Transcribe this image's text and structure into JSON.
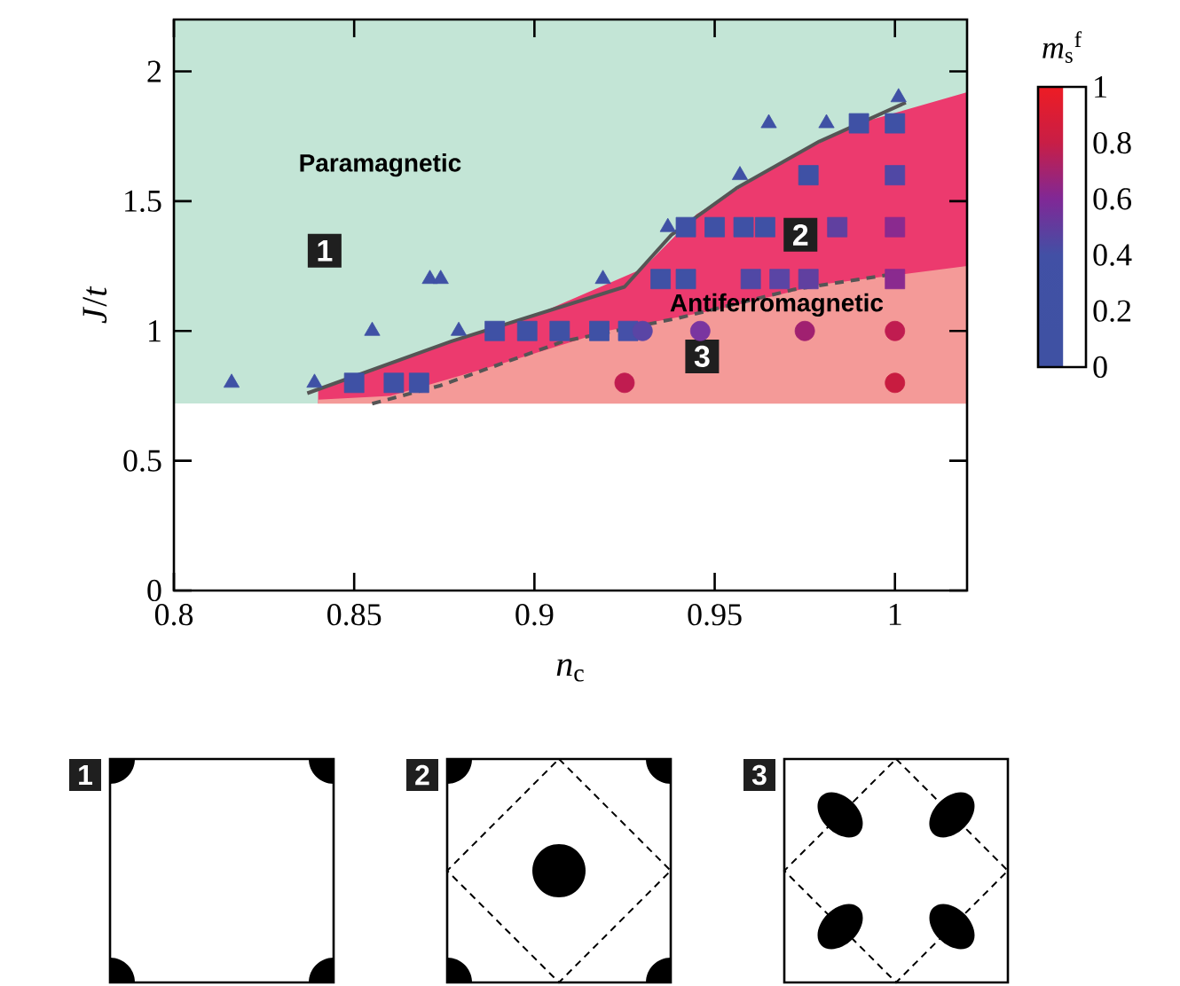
{
  "chart_data": {
    "type": "scatter",
    "xlabel": "*n*$_{c}$",
    "ylabel": "*J*/*t*",
    "clabel": "*m*$_{s}$$^{f}$",
    "xlim": [
      0.8,
      1.02
    ],
    "ylim": [
      0,
      2.2
    ],
    "xticks": [
      0.8,
      0.85,
      0.9,
      0.95,
      1
    ],
    "yticks": [
      0,
      0.5,
      1,
      1.5,
      2
    ],
    "clim": [
      0,
      1
    ],
    "cticks": [
      0,
      0.2,
      0.4,
      0.6,
      0.8,
      1
    ],
    "bands": [
      {
        "axis": "y",
        "from": 0.72,
        "to": 2.2,
        "color": "#c3e5d6"
      },
      {
        "axis": "y",
        "from": 0,
        "to": 0.72,
        "color": "#ffffff"
      }
    ],
    "series": [
      {
        "type": "area",
        "color": "#ec3a6e",
        "x": [
          0.84,
          0.86,
          0.9,
          0.93,
          0.945,
          0.97,
          0.99,
          1.02
        ],
        "values": [
          0.77,
          0.88,
          1.06,
          1.24,
          1.45,
          1.66,
          1.8,
          1.92
        ]
      },
      {
        "type": "area",
        "color": "#f49a98",
        "x": [
          0.84,
          0.86,
          0.89,
          0.92,
          0.95,
          0.98,
          1.02
        ],
        "values": [
          0.735,
          0.75,
          0.87,
          1.0,
          1.08,
          1.18,
          1.25
        ]
      },
      {
        "type": "line",
        "color": "#555555",
        "line_style": "solid",
        "x": [
          0.837,
          0.877,
          0.925,
          0.938,
          0.956,
          0.979,
          1.003
        ],
        "values": [
          0.76,
          0.96,
          1.17,
          1.37,
          1.55,
          1.73,
          1.88
        ]
      },
      {
        "type": "line",
        "color": "#555555",
        "line_style": "dashed",
        "x": [
          0.855,
          0.874,
          0.908,
          0.94,
          0.972,
          1.0
        ],
        "values": [
          0.72,
          0.79,
          0.96,
          1.05,
          1.16,
          1.22
        ]
      },
      {
        "marker": "triangle",
        "x": [
          0.816,
          0.839,
          0.855,
          0.871,
          0.874,
          0.879,
          0.919,
          0.937,
          0.957,
          0.965,
          0.981,
          1.001
        ],
        "values": [
          0.8,
          0.8,
          1.0,
          1.2,
          1.2,
          1.0,
          1.2,
          1.4,
          1.6,
          1.8,
          1.8,
          1.9
        ],
        "color": "#3f51a5"
      },
      {
        "marker": "square",
        "x": [
          0.85,
          0.861,
          0.868,
          0.889,
          0.898,
          0.907,
          0.918,
          0.926,
          0.935,
          0.942,
          0.96,
          0.968,
          0.976,
          1.0,
          0.942,
          0.95,
          0.958,
          0.964,
          0.984,
          1.0,
          0.976,
          1.0,
          0.99,
          1.0
        ],
        "values": [
          0.8,
          0.8,
          0.8,
          1.0,
          1.0,
          1.0,
          1.0,
          1.0,
          1.2,
          1.2,
          1.2,
          1.2,
          1.2,
          1.2,
          1.4,
          1.4,
          1.4,
          1.4,
          1.4,
          1.4,
          1.6,
          1.6,
          1.8,
          1.8
        ],
        "colors": [
          "#3f51a5",
          "#3f51a5",
          "#3f51a5",
          "#3f51a5",
          "#3f51a5",
          "#3f51a5",
          "#3f51a5",
          "#4550a8",
          "#3f51a5",
          "#3f51a5",
          "#5048a5",
          "#5a45a5",
          "#6040a0",
          "#8a2a8f",
          "#3f51a5",
          "#3f51a5",
          "#3f51a5",
          "#3f51a5",
          "#6040a0",
          "#8a2a8f",
          "#3f51a5",
          "#5048a5",
          "#3f51a5",
          "#3f51a5"
        ]
      },
      {
        "marker": "circle",
        "x": [
          0.93,
          0.946,
          0.975,
          1.0,
          0.925,
          1.0
        ],
        "values": [
          1.0,
          1.0,
          1.0,
          1.0,
          0.8,
          0.8
        ],
        "colors": [
          "#5a45a5",
          "#7a35a0",
          "#a02070",
          "#c01c50",
          "#c01c50",
          "#c81c40"
        ]
      }
    ],
    "annotations": [
      "Paramagnetic",
      "Antiferromagnetic",
      "1",
      "2",
      "3",
      "1",
      "2",
      "3"
    ]
  }
}
